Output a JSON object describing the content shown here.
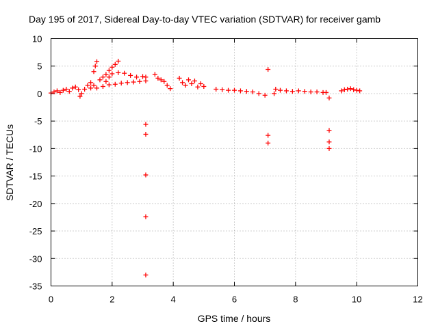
{
  "chart_data": {
    "type": "scatter",
    "title": "Day 195 of 2017, Sidereal Day-to-day VTEC variation (SDTVAR) for receiver gamb",
    "xlabel": "GPS time / hours",
    "ylabel": "SDTVAR / TECUs",
    "xlim": [
      0,
      12
    ],
    "ylim": [
      -35,
      10
    ],
    "xticks": [
      0,
      2,
      4,
      6,
      8,
      10,
      12
    ],
    "yticks": [
      10,
      5,
      0,
      -5,
      -10,
      -15,
      -20,
      -25,
      -30,
      -35
    ],
    "grid": true,
    "marker": "+",
    "color": "#ff0000",
    "series": [
      {
        "name": "SDTVAR",
        "points": [
          [
            0.0,
            0.1
          ],
          [
            0.1,
            0.3
          ],
          [
            0.2,
            0.5
          ],
          [
            0.3,
            0.2
          ],
          [
            0.4,
            0.6
          ],
          [
            0.5,
            0.8
          ],
          [
            0.6,
            0.4
          ],
          [
            0.7,
            1.0
          ],
          [
            0.8,
            1.2
          ],
          [
            0.9,
            0.7
          ],
          [
            0.95,
            -0.5
          ],
          [
            1.0,
            0.0
          ],
          [
            1.1,
            0.8
          ],
          [
            1.2,
            1.5
          ],
          [
            1.3,
            2.0
          ],
          [
            1.4,
            4.0
          ],
          [
            1.45,
            5.0
          ],
          [
            1.5,
            5.8
          ],
          [
            1.3,
            1.0
          ],
          [
            1.4,
            1.5
          ],
          [
            1.6,
            2.5
          ],
          [
            1.7,
            3.0
          ],
          [
            1.8,
            3.5
          ],
          [
            1.9,
            4.2
          ],
          [
            2.0,
            4.8
          ],
          [
            2.1,
            5.3
          ],
          [
            2.2,
            5.9
          ],
          [
            1.8,
            2.2
          ],
          [
            1.9,
            3.0
          ],
          [
            2.0,
            3.6
          ],
          [
            2.2,
            3.8
          ],
          [
            2.4,
            3.7
          ],
          [
            2.6,
            3.3
          ],
          [
            2.8,
            3.0
          ],
          [
            3.0,
            3.1
          ],
          [
            3.1,
            3.0
          ],
          [
            1.5,
            1.0
          ],
          [
            1.7,
            1.3
          ],
          [
            1.9,
            1.6
          ],
          [
            2.1,
            1.7
          ],
          [
            2.3,
            1.9
          ],
          [
            2.5,
            2.0
          ],
          [
            2.7,
            2.1
          ],
          [
            2.9,
            2.2
          ],
          [
            3.1,
            2.3
          ],
          [
            3.4,
            3.5
          ],
          [
            3.5,
            2.8
          ],
          [
            3.6,
            2.5
          ],
          [
            3.7,
            2.2
          ],
          [
            3.8,
            1.5
          ],
          [
            3.9,
            0.9
          ],
          [
            4.2,
            2.8
          ],
          [
            4.3,
            2.0
          ],
          [
            4.4,
            1.5
          ],
          [
            4.5,
            2.5
          ],
          [
            4.6,
            1.8
          ],
          [
            4.7,
            2.3
          ],
          [
            4.8,
            1.2
          ],
          [
            4.9,
            1.8
          ],
          [
            5.0,
            1.3
          ],
          [
            5.4,
            0.8
          ],
          [
            5.6,
            0.7
          ],
          [
            5.8,
            0.6
          ],
          [
            6.0,
            0.6
          ],
          [
            6.2,
            0.5
          ],
          [
            6.4,
            0.4
          ],
          [
            6.6,
            0.3
          ],
          [
            6.8,
            0.0
          ],
          [
            7.0,
            -0.3
          ],
          [
            7.3,
            0.0
          ],
          [
            7.35,
            0.8
          ],
          [
            7.5,
            0.6
          ],
          [
            7.7,
            0.5
          ],
          [
            7.9,
            0.4
          ],
          [
            8.1,
            0.5
          ],
          [
            8.3,
            0.4
          ],
          [
            8.5,
            0.3
          ],
          [
            8.7,
            0.3
          ],
          [
            8.9,
            0.2
          ],
          [
            9.0,
            0.2
          ],
          [
            9.1,
            -0.8
          ],
          [
            9.5,
            0.5
          ],
          [
            9.6,
            0.7
          ],
          [
            9.7,
            0.8
          ],
          [
            9.8,
            0.9
          ],
          [
            9.9,
            0.7
          ],
          [
            10.0,
            0.6
          ],
          [
            10.1,
            0.5
          ],
          [
            3.1,
            -5.6
          ],
          [
            3.1,
            -7.4
          ],
          [
            3.1,
            -14.8
          ],
          [
            3.1,
            -22.4
          ],
          [
            3.1,
            -33.0
          ],
          [
            7.1,
            4.4
          ],
          [
            7.1,
            -7.6
          ],
          [
            7.1,
            -9.0
          ],
          [
            9.1,
            -6.7
          ],
          [
            9.1,
            -8.8
          ],
          [
            9.1,
            -10.0
          ]
        ]
      }
    ]
  }
}
